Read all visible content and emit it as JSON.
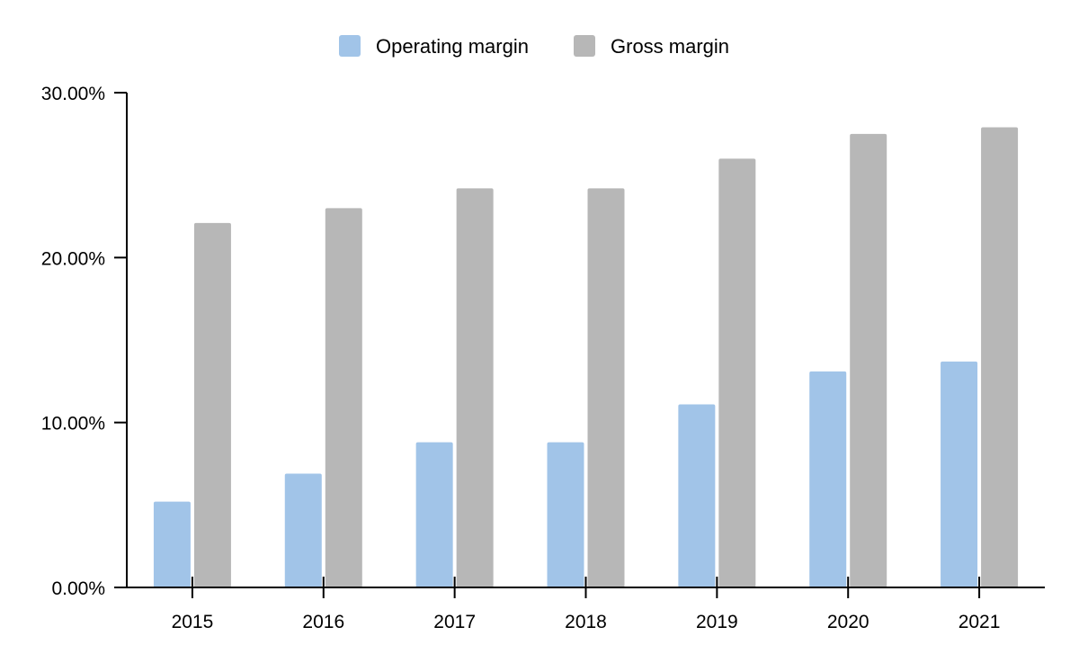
{
  "chart_data": {
    "type": "bar",
    "categories": [
      "2015",
      "2016",
      "2017",
      "2018",
      "2019",
      "2020",
      "2021"
    ],
    "series": [
      {
        "name": "Operating margin",
        "color": "#a1c4e8",
        "values": [
          5.2,
          6.9,
          8.8,
          8.8,
          11.1,
          13.1,
          13.7
        ]
      },
      {
        "name": "Gross margin",
        "color": "#b7b7b7",
        "values": [
          22.1,
          23.0,
          24.2,
          24.2,
          26.0,
          27.5,
          27.9
        ]
      }
    ],
    "y_ticks": [
      "0.00%",
      "10.00%",
      "20.00%",
      "30.00%"
    ],
    "ylim": [
      0,
      30
    ],
    "legend_position": "top-center",
    "grid": false,
    "title": "",
    "xlabel": "",
    "ylabel": ""
  }
}
